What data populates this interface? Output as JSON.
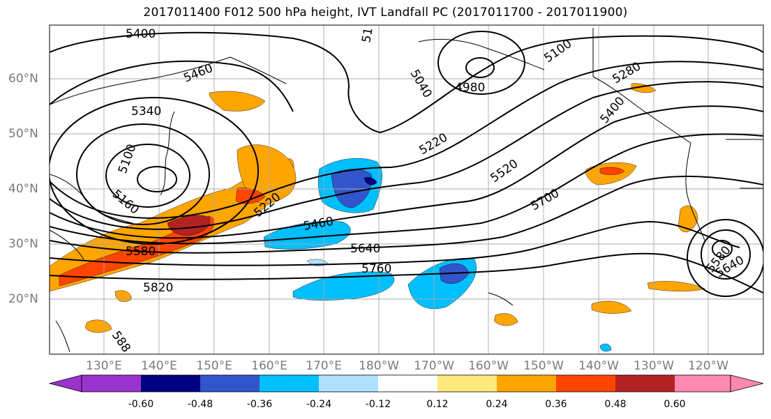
{
  "title": "2017011400 F012 500 hPa height, IVT Landfall PC (2017011700 - 2017011900)",
  "lat_labels": [
    "60°N",
    "50°N",
    "40°N",
    "30°N",
    "20°N"
  ],
  "lon_labels": [
    "130°E",
    "140°E",
    "150°E",
    "160°E",
    "170°E",
    "180°W",
    "170°W",
    "160°W",
    "150°W",
    "140°W",
    "130°W",
    "120°W"
  ],
  "colorbar": {
    "labels": [
      "-0.60",
      "-0.48",
      "-0.36",
      "-0.24",
      "-0.12",
      "0.12",
      "0.24",
      "0.36",
      "0.48",
      "0.60"
    ],
    "colors": [
      "#9933cc",
      "#000080",
      "#3355cc",
      "#00bfff",
      "#b0e0ff",
      "#ffffff",
      "#ffe97f",
      "#ffa500",
      "#ff4500",
      "#b22222",
      "#ff88b0"
    ]
  },
  "contour_labels": [
    "5400",
    "5460",
    "5340",
    "5100",
    "5160",
    "5220",
    "5580",
    "5820",
    "588",
    "5460",
    "5640",
    "5760",
    "5220",
    "5520",
    "5700",
    "5100",
    "5280",
    "5400",
    "5040",
    "4980",
    "51",
    "5580",
    "5640"
  ]
}
